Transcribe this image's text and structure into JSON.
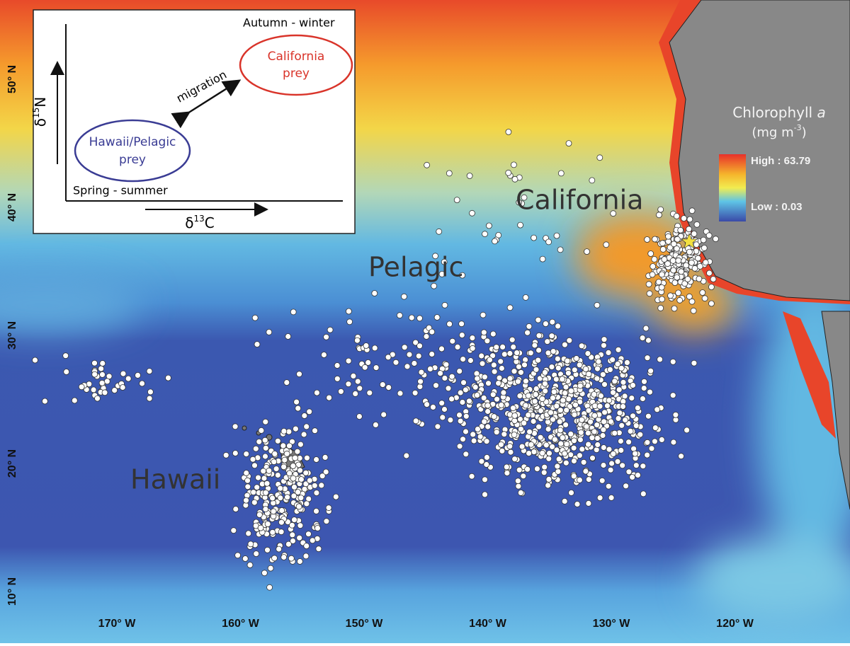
{
  "map": {
    "latitude_labels": [
      "50° N",
      "40° N",
      "30° N",
      "20° N",
      "10° N"
    ],
    "longitude_labels": [
      "170° W",
      "160° W",
      "150° W",
      "140° W",
      "130° W",
      "120° W"
    ],
    "regions": [
      "California",
      "Pelagic",
      "Hawaii"
    ],
    "legend": {
      "title": "Chlorophyll ",
      "title_italic": "a",
      "unit": "(mg m",
      "unit_sup": "-3",
      "unit_end": ")",
      "high": "High : 63.79",
      "low": "Low : 0.03"
    },
    "inset": {
      "autumn": "Autumn - winter",
      "spring": "Spring - summer",
      "california": [
        "California",
        "prey"
      ],
      "hawaii": [
        "Hawaii/Pelagic",
        "prey"
      ],
      "migration": "migration",
      "y_axis": {
        "delta": "δ",
        "sup": "15",
        "element": "N"
      },
      "x_axis": {
        "delta": "δ",
        "sup": "13",
        "element": "C"
      }
    }
  }
}
